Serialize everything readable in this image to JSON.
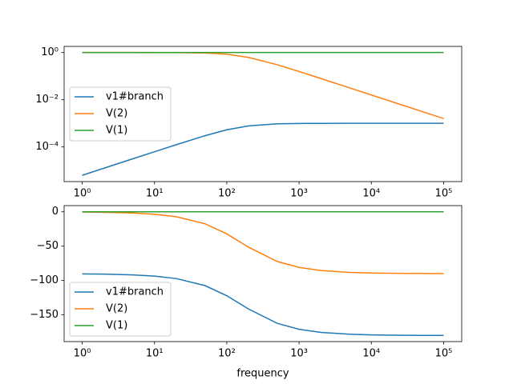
{
  "chart_data": [
    {
      "type": "line",
      "x": [
        1,
        2,
        5,
        10,
        20,
        50,
        100,
        200,
        500,
        1000,
        2000,
        5000,
        10000,
        20000,
        50000,
        100000
      ],
      "series": [
        {
          "name": "v1#branch",
          "color": "#1f77b4",
          "values": [
            6.283e-06,
            1.2565e-05,
            3.14e-05,
            6.271e-05,
            0.0001247,
            0.0002997,
            0.000532,
            0.000782,
            0.000953,
            0.0009876,
            0.000997,
            0.0009995,
            0.0009999,
            0.001,
            0.001,
            0.001
          ]
        },
        {
          "name": "V(2)",
          "color": "#ff7f0e",
          "values": [
            0.99998,
            0.99992,
            0.99951,
            0.99803,
            0.9922,
            0.95399,
            0.84673,
            0.62268,
            0.30331,
            0.15717,
            0.07933,
            0.03182,
            0.01591,
            0.007958,
            0.003183,
            0.001592
          ]
        },
        {
          "name": "V(1)",
          "color": "#2ca02c",
          "values": [
            1,
            1,
            1,
            1,
            1,
            1,
            1,
            1,
            1,
            1,
            1,
            1,
            1,
            1,
            1,
            1
          ]
        }
      ],
      "xscale": "log",
      "yscale": "log",
      "xlim": [
        0.562,
        177800
      ],
      "ylim": [
        3.4e-06,
        1.82
      ],
      "xticks": [
        {
          "value": 1,
          "label": "10⁰"
        },
        {
          "value": 10,
          "label": "10¹"
        },
        {
          "value": 100,
          "label": "10²"
        },
        {
          "value": 1000,
          "label": "10³"
        },
        {
          "value": 10000,
          "label": "10⁴"
        },
        {
          "value": 100000,
          "label": "10⁵"
        }
      ],
      "yticks": [
        {
          "value": 0.0001,
          "label": "10⁻⁴"
        },
        {
          "value": 0.01,
          "label": "10⁻²"
        },
        {
          "value": 1,
          "label": "10⁰"
        }
      ],
      "legend": "center left"
    },
    {
      "type": "line",
      "x": [
        1,
        2,
        5,
        10,
        20,
        50,
        100,
        200,
        500,
        1000,
        2000,
        5000,
        10000,
        20000,
        50000,
        100000
      ],
      "series": [
        {
          "name": "v1#branch",
          "color": "#1f77b4",
          "values": [
            -90.36,
            -90.72,
            -91.8,
            -93.6,
            -97.16,
            -107.44,
            -122.14,
            -141.49,
            -162.34,
            -170.96,
            -175.45,
            -178.18,
            -179.09,
            -179.54,
            -179.82,
            -179.91
          ]
        },
        {
          "name": "V(2)",
          "color": "#ff7f0e",
          "values": [
            -0.36,
            -0.72,
            -1.8,
            -3.6,
            -7.16,
            -17.44,
            -32.14,
            -51.49,
            -72.34,
            -80.96,
            -85.45,
            -88.18,
            -89.09,
            -89.54,
            -89.82,
            -89.91
          ]
        },
        {
          "name": "V(1)",
          "color": "#2ca02c",
          "values": [
            0,
            0,
            0,
            0,
            0,
            0,
            0,
            0,
            0,
            0,
            0,
            0,
            0,
            0,
            0,
            0
          ]
        }
      ],
      "xscale": "log",
      "yscale": "linear",
      "xlim": [
        0.562,
        177800
      ],
      "ylim": [
        -188.9,
        9.0
      ],
      "xticks": [
        {
          "value": 1,
          "label": "10⁰"
        },
        {
          "value": 10,
          "label": "10¹"
        },
        {
          "value": 100,
          "label": "10²"
        },
        {
          "value": 1000,
          "label": "10³"
        },
        {
          "value": 10000,
          "label": "10⁴"
        },
        {
          "value": 100000,
          "label": "10⁵"
        }
      ],
      "yticks": [
        0,
        {
          "value": -50,
          "label": "−50"
        },
        {
          "value": -100,
          "label": "−100"
        },
        {
          "value": -150,
          "label": "−150"
        }
      ],
      "xlabel": "frequency",
      "legend": "lower left"
    }
  ]
}
